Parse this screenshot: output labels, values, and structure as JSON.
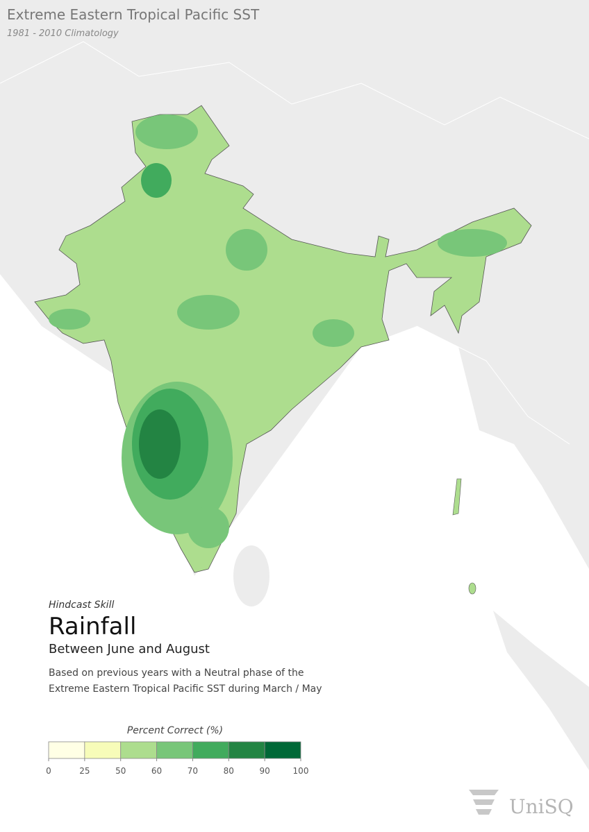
{
  "header": {
    "title": "Extreme Eastern Tropical Pacific SST",
    "subtitle": "1981 - 2010 Climatology"
  },
  "panel": {
    "kicker": "Hindcast Skill",
    "title": "Rainfall",
    "period": "Between June and August",
    "description": [
      "Based on previous years with a Neutral phase of the",
      "Extreme Eastern Tropical Pacific SST during March / May"
    ]
  },
  "legend": {
    "title": "Percent Correct (%)",
    "ticks": [
      0,
      25,
      50,
      60,
      70,
      80,
      90,
      100
    ],
    "colors": [
      "#ffffe5",
      "#f7fcb9",
      "#addd8e",
      "#78c679",
      "#41ab5d",
      "#238443",
      "#006837"
    ]
  },
  "logo": "UniSQ"
}
